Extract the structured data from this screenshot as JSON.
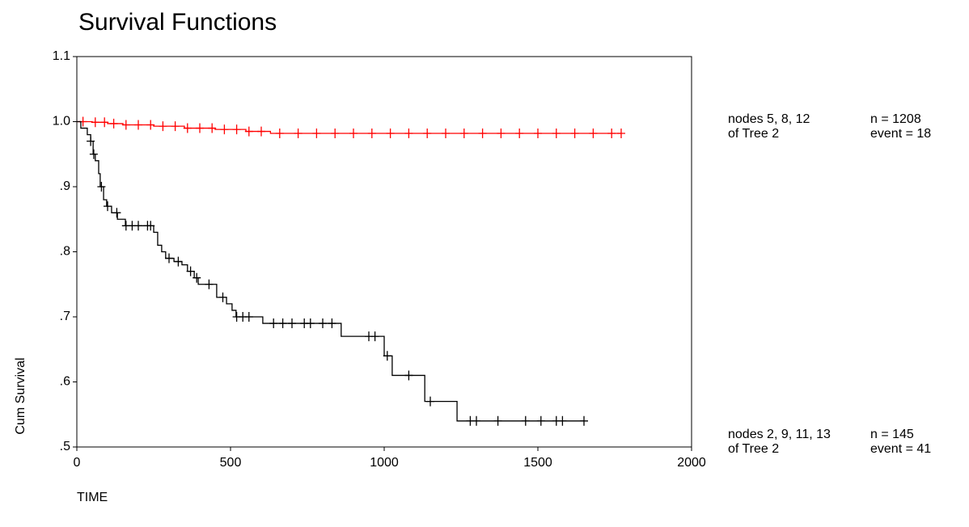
{
  "chart_data": {
    "type": "survival",
    "title": "Survival Functions",
    "x_label": "TIME",
    "y_label": "Cum Survival",
    "xlim": [
      0,
      2000
    ],
    "xticks": [
      0,
      500,
      1000,
      1500,
      2000
    ],
    "ylim": [
      0.5,
      1.1
    ],
    "yticks": [
      {
        "value": 0.5,
        "label": ".5"
      },
      {
        "value": 0.6,
        "label": ".6"
      },
      {
        "value": 0.7,
        "label": ".7"
      },
      {
        "value": 0.8,
        "label": ".8"
      },
      {
        "value": 0.9,
        "label": ".9"
      },
      {
        "value": 1.0,
        "label": "1.0"
      },
      1.1
    ],
    "series": [
      {
        "name": "nodes 5, 8, 12",
        "subname": "of Tree 2",
        "n_label": "n = 1208",
        "event_label": "event = 18",
        "color": "#ff0000",
        "x": [
          0,
          50,
          100,
          150,
          250,
          350,
          450,
          550,
          630,
          1771
        ],
        "values": [
          1.0,
          0.999,
          0.997,
          0.995,
          0.993,
          0.99,
          0.988,
          0.985,
          0.982,
          0.982
        ],
        "censored_x": [
          20,
          60,
          90,
          120,
          160,
          200,
          240,
          280,
          320,
          360,
          400,
          440,
          480,
          520,
          560,
          600,
          660,
          720,
          780,
          840,
          900,
          960,
          1020,
          1080,
          1140,
          1200,
          1260,
          1320,
          1380,
          1440,
          1500,
          1560,
          1620,
          1680,
          1740,
          1771
        ],
        "censored_values": [
          1.0,
          0.999,
          0.999,
          0.997,
          0.995,
          0.995,
          0.995,
          0.993,
          0.993,
          0.99,
          0.99,
          0.99,
          0.988,
          0.988,
          0.985,
          0.985,
          0.982,
          0.982,
          0.982,
          0.982,
          0.982,
          0.982,
          0.982,
          0.982,
          0.982,
          0.982,
          0.982,
          0.982,
          0.982,
          0.982,
          0.982,
          0.982,
          0.982,
          0.982,
          0.982,
          0.982
        ]
      },
      {
        "name": "nodes 2, 9, 11, 13",
        "subname": "of Tree 2",
        "n_label": "n = 145",
        "event_label": "event = 41",
        "color": "#000000",
        "x": [
          0,
          13,
          34,
          45,
          53,
          60,
          71,
          76,
          87,
          97,
          113,
          132,
          158,
          250,
          263,
          276,
          289,
          316,
          342,
          360,
          382,
          395,
          455,
          487,
          505,
          518,
          605,
          860,
          1000,
          1026,
          1132,
          1237,
          1650
        ],
        "values": [
          1.0,
          0.99,
          0.98,
          0.97,
          0.95,
          0.94,
          0.92,
          0.9,
          0.88,
          0.87,
          0.86,
          0.85,
          0.84,
          0.83,
          0.81,
          0.8,
          0.79,
          0.785,
          0.78,
          0.77,
          0.76,
          0.75,
          0.73,
          0.72,
          0.71,
          0.7,
          0.69,
          0.67,
          0.64,
          0.61,
          0.57,
          0.54,
          0.54
        ],
        "censored_x": [
          45,
          55,
          80,
          100,
          130,
          160,
          180,
          200,
          230,
          240,
          300,
          330,
          370,
          390,
          430,
          475,
          520,
          540,
          560,
          640,
          670,
          700,
          740,
          760,
          800,
          830,
          950,
          970,
          1010,
          1080,
          1150,
          1280,
          1300,
          1370,
          1460,
          1510,
          1560,
          1580,
          1650
        ],
        "censored_values": [
          0.97,
          0.95,
          0.9,
          0.87,
          0.86,
          0.84,
          0.84,
          0.84,
          0.84,
          0.84,
          0.79,
          0.785,
          0.77,
          0.76,
          0.75,
          0.73,
          0.7,
          0.7,
          0.7,
          0.69,
          0.69,
          0.69,
          0.69,
          0.69,
          0.69,
          0.69,
          0.67,
          0.67,
          0.64,
          0.61,
          0.57,
          0.54,
          0.54,
          0.54,
          0.54,
          0.54,
          0.54,
          0.54,
          0.54
        ]
      }
    ]
  }
}
